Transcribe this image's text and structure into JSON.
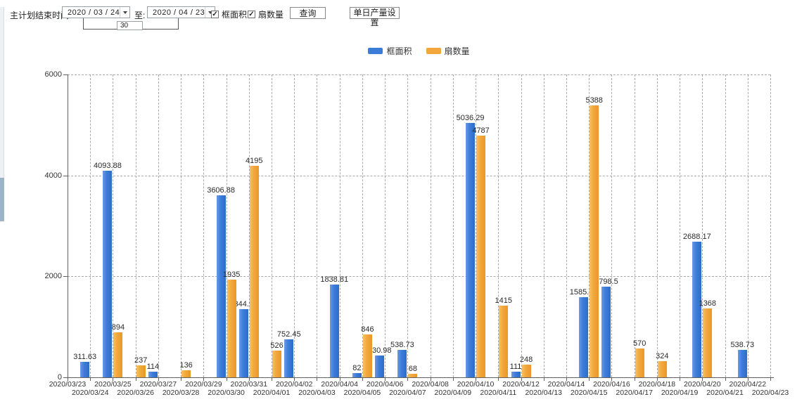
{
  "toolbar": {
    "plan_end_label": "主计划结束时间:",
    "date_from": "2020 / 03 / 24",
    "to_label": "至:",
    "date_to": "2020 / 04 / 23",
    "interval_days": "30",
    "checkbox_frame_area": "框面积",
    "checkbox_fan_count": "扇数量",
    "query_button": "查询",
    "daily_output_button": "单日产量设置"
  },
  "legend": [
    {
      "label": "框面积",
      "color": "#3b7cd9"
    },
    {
      "label": "扇数量",
      "color": "#f2a63c"
    }
  ],
  "colors": {
    "frame_area_bar": "#3b7cd9",
    "fan_count_bar": "#f2a63c",
    "grid": "#aaaaaa",
    "axis": "#606060"
  },
  "chart_data": {
    "type": "bar",
    "title": "",
    "xlabel": "",
    "ylabel": "",
    "ylim": [
      0,
      6000
    ],
    "yticks": [
      0,
      2000,
      4000,
      6000
    ],
    "grid": true,
    "legend_position": "top",
    "categories": [
      "2020/03/23",
      "2020/03/24",
      "2020/03/25",
      "2020/03/26",
      "2020/03/27",
      "2020/03/28",
      "2020/03/29",
      "2020/03/30",
      "2020/03/31",
      "2020/04/01",
      "2020/04/02",
      "2020/04/03",
      "2020/04/04",
      "2020/04/05",
      "2020/04/06",
      "2020/04/07",
      "2020/04/08",
      "2020/04/09",
      "2020/04/10",
      "2020/04/11",
      "2020/04/12",
      "2020/04/13",
      "2020/04/14",
      "2020/04/15",
      "2020/04/16",
      "2020/04/17",
      "2020/04/18",
      "2020/04/19",
      "2020/04/20",
      "2020/04/21",
      "2020/04/22",
      "2020/04/23"
    ],
    "series": [
      {
        "name": "框面积",
        "color": "#3b7cd9",
        "values": [
          null,
          311.63,
          4093.88,
          null,
          114,
          null,
          null,
          3606.88,
          1344.95,
          null,
          752.45,
          null,
          1838.81,
          82,
          430.98,
          538.73,
          null,
          null,
          5036.29,
          null,
          111,
          null,
          null,
          1585.96,
          1798.5,
          null,
          null,
          null,
          2688.17,
          null,
          538.73,
          null
        ]
      },
      {
        "name": "扇数量",
        "color": "#f2a63c",
        "values": [
          null,
          null,
          894,
          237,
          null,
          136,
          null,
          1935,
          4195,
          526,
          null,
          null,
          null,
          846,
          null,
          68,
          null,
          null,
          4787,
          1415,
          248,
          null,
          null,
          5388,
          null,
          570,
          324,
          null,
          1368,
          null,
          null,
          null
        ]
      }
    ]
  }
}
